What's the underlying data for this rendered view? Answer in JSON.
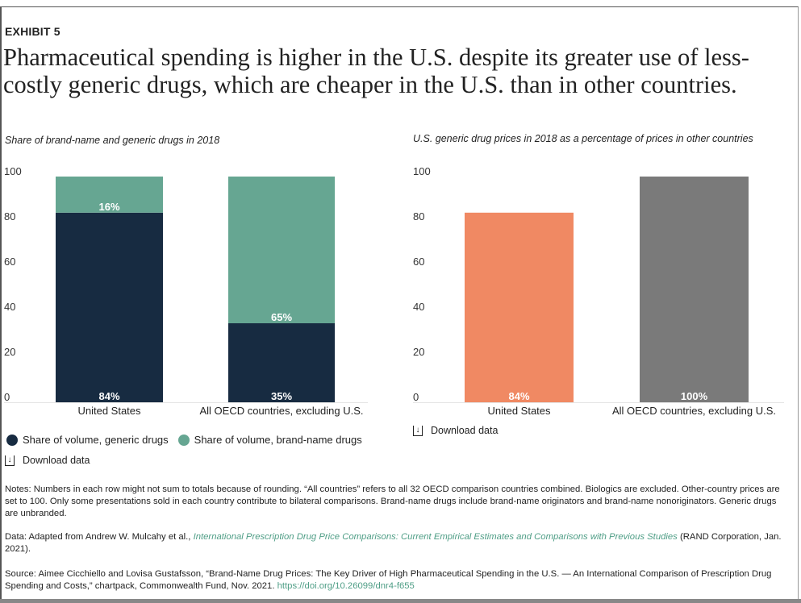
{
  "exhibit_label": "EXHIBIT 5",
  "title": "Pharmaceutical spending is higher in the U.S. despite its greater use of less-costly generic drugs, which are cheaper in the U.S. than in other countries.",
  "colors": {
    "generic": "#172b41",
    "brand": "#66a692",
    "us_price": "#f08963",
    "oecd_price": "#7a7a7a",
    "link": "#4f9e86"
  },
  "chart_data": [
    {
      "type": "bar",
      "stacked": true,
      "title": "Share of brand-name and generic drugs in 2018",
      "categories": [
        "United States",
        "All OECD countries, excluding U.S."
      ],
      "series": [
        {
          "name": "Share of volume, generic drugs",
          "values": [
            84,
            35
          ],
          "labels": [
            "84%",
            "35%"
          ],
          "color": "#172b41"
        },
        {
          "name": "Share of volume, brand-name drugs",
          "values": [
            16,
            65
          ],
          "labels": [
            "16%",
            "65%"
          ],
          "color": "#66a692"
        }
      ],
      "ylim": [
        0,
        100
      ],
      "yticks": [
        0,
        20,
        40,
        60,
        80,
        100
      ],
      "grid": false,
      "legend": "bottom-left"
    },
    {
      "type": "bar",
      "title": "U.S. generic drug prices in 2018 as a percentage of prices in other countries",
      "categories": [
        "United States",
        "All OECD countries, excluding U.S."
      ],
      "values": [
        84,
        100
      ],
      "labels": [
        "84%",
        "100%"
      ],
      "colors": [
        "#f08963",
        "#7a7a7a"
      ],
      "ylim": [
        0,
        100
      ],
      "yticks": [
        0,
        20,
        40,
        60,
        80,
        100
      ],
      "grid": false
    }
  ],
  "download_label": "Download data",
  "notes": "Notes: Numbers in each row might not sum to totals because of rounding. “All countries” refers to all 32 OECD comparison countries combined. Biologics are excluded. Other-country prices are set to 100. Only some presentations sold in each country contribute to bilateral comparisons. Brand-name drugs include brand-name originators and brand-name nonoriginators. Generic drugs are unbranded.",
  "data_source": {
    "prefix": "Data: Adapted from Andrew W. Mulcahy et al., ",
    "link_text": "International Prescription Drug Price Comparisons: Current Empirical Estimates and Comparisons with Previous Studies",
    "suffix": " (RAND Corporation, Jan. 2021)."
  },
  "source": {
    "text": "Source: Aimee Cicchiello and Lovisa Gustafsson, “Brand-Name Drug Prices: The Key Driver of High Pharmaceutical Spending in the U.S. — An International Comparison of Prescription Drug Spending and Costs,” chartpack, Commonwealth Fund, Nov. 2021. ",
    "link_text": "https://doi.org/10.26099/dnr4-f655"
  }
}
